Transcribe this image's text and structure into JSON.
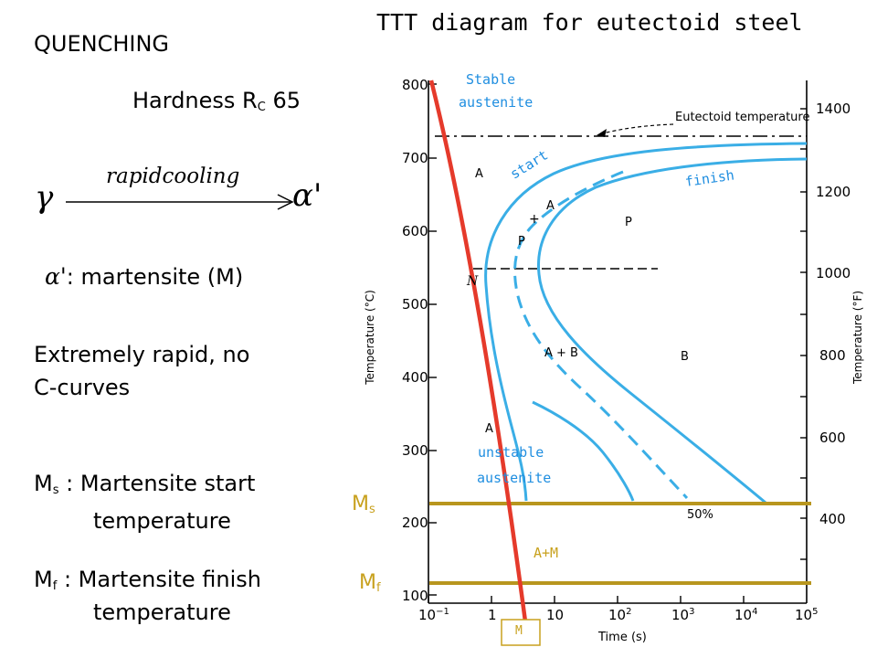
{
  "left": {
    "heading": "QUENCHING",
    "hardness_prefix": "Hardness R",
    "hardness_sub": "C",
    "hardness_value": "65",
    "eq_left": "γ",
    "eq_arrow_label": "rapidcooling",
    "eq_right": "α'",
    "alpha_symbol": "α'",
    "alpha_def": ": martensite (M)",
    "note_line1": "Extremely rapid, no",
    "note_line2": "C-curves",
    "ms_symbol": "M",
    "ms_sub": "s",
    "ms_def_line1": ": Martensite start",
    "ms_def_line2": "temperature",
    "mf_symbol": "M",
    "mf_sub": "f",
    "mf_def_line1": ": Martensite finish",
    "mf_def_line2": "temperature"
  },
  "diagram": {
    "title": "TTT diagram for eutectoid steel",
    "y_label_left": "Temperature (°C)",
    "y_label_right": "Temperature (°F)",
    "x_label": "Time (s)",
    "y_ticks_c": [
      "800",
      "700",
      "600",
      "500",
      "400",
      "300",
      "200",
      "100"
    ],
    "y_ticks_f": [
      "1400",
      "1200",
      "1000",
      "800",
      "600",
      "400"
    ],
    "x_ticks": [
      {
        "base": "10",
        "exp": "−1"
      },
      {
        "base": "1",
        "exp": ""
      },
      {
        "base": "10",
        "exp": ""
      },
      {
        "base": "10",
        "exp": "2"
      },
      {
        "base": "10",
        "exp": "3"
      },
      {
        "base": "10",
        "exp": "4"
      },
      {
        "base": "10",
        "exp": "5"
      }
    ],
    "eutectoid_label": "Eutectoid temperature",
    "region_labels": {
      "a_upper": "A",
      "a_plus": "+",
      "a_mid": "A",
      "p_mid": "P",
      "p_right": "P",
      "n": "N",
      "a_b": "A + B",
      "b": "B",
      "a_low": "A",
      "fifty": "50%"
    },
    "annotations": {
      "stable_1": "Stable",
      "stable_2": "austenite",
      "start": "start",
      "finish": "finish",
      "unstable_1": "unstable",
      "unstable_2": "austenite",
      "a_m": "A+M",
      "m_box": "M",
      "ms_symbol": "M",
      "ms_sub": "s",
      "mf_symbol": "M",
      "mf_sub": "f"
    },
    "colors": {
      "curve": "#3aaee6",
      "quench": "#e53a2b",
      "ms_mf_line": "#b8961e",
      "annotation_blue": "#1f8ee0",
      "annotation_gold": "#c8a11e"
    }
  }
}
